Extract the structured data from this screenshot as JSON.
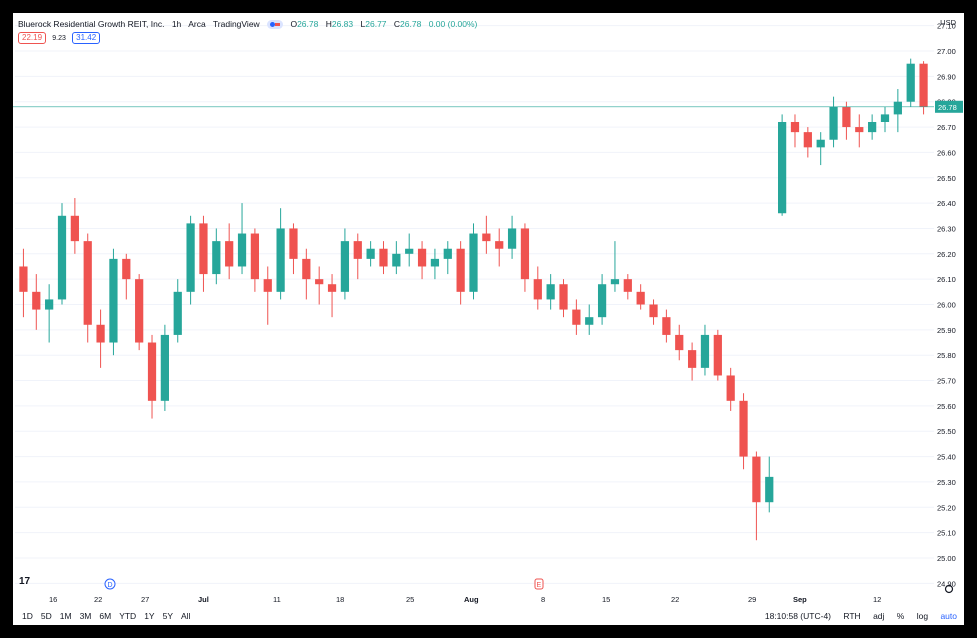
{
  "header": {
    "title": "Bluerock Residential Growth REIT, Inc.",
    "interval": "1h",
    "exchange": "Arca",
    "source": "TradingView",
    "o_label": "O",
    "o": "26.78",
    "h_label": "H",
    "h": "26.83",
    "l_label": "L",
    "l": "26.77",
    "c_label": "C",
    "c": "26.78",
    "change": "0.00 (0.00%)"
  },
  "indicator": {
    "left": "22.19",
    "mid": "9.23",
    "right": "31.42"
  },
  "currency": "USD",
  "range_buttons": [
    "1D",
    "5D",
    "1M",
    "3M",
    "6M",
    "YTD",
    "1Y",
    "5Y",
    "All"
  ],
  "footer": {
    "time": "18:10:58 (UTC-4)",
    "session": "RTH",
    "adj": "adj",
    "pct": "%",
    "log": "log",
    "auto": "auto"
  },
  "markers": [
    {
      "label": "D",
      "date": "Jun 24"
    },
    {
      "label": "E",
      "date": "Aug 8"
    }
  ],
  "colors": {
    "up": "#26a69a",
    "down": "#ef5350",
    "price_line": "#26a69a",
    "text": "#131722"
  },
  "chart_data": {
    "type": "candlestick",
    "y_axis": {
      "min": 24.85,
      "max": 27.15,
      "ticks": [
        "24.90",
        "25.00",
        "25.10",
        "25.20",
        "25.30",
        "25.40",
        "25.50",
        "25.60",
        "25.70",
        "25.80",
        "25.90",
        "26.00",
        "26.10",
        "26.20",
        "26.30",
        "26.40",
        "26.50",
        "26.60",
        "26.70",
        "26.80",
        "26.90",
        "27.00",
        "27.10"
      ]
    },
    "x_axis": {
      "labels": [
        "16",
        "22",
        "27",
        "Jul",
        "11",
        "18",
        "25",
        "Aug",
        "8",
        "15",
        "22",
        "29",
        "Sep",
        "12"
      ]
    },
    "last_price": "26.78",
    "series": [
      {
        "x": "Jun 14",
        "values": [
          26.15,
          26.22,
          25.95,
          26.05
        ]
      },
      {
        "x": "Jun 15",
        "values": [
          26.05,
          26.12,
          25.9,
          25.98
        ]
      },
      {
        "x": "Jun 16",
        "values": [
          25.98,
          26.08,
          25.85,
          26.02
        ]
      },
      {
        "x": "Jun 17",
        "values": [
          26.02,
          26.4,
          26.0,
          26.35
        ]
      },
      {
        "x": "Jun 18",
        "values": [
          26.35,
          26.42,
          26.2,
          26.25
        ]
      },
      {
        "x": "Jun 21",
        "values": [
          26.25,
          26.28,
          25.85,
          25.92
        ]
      },
      {
        "x": "Jun 21",
        "values": [
          25.92,
          25.98,
          25.75,
          25.85
        ]
      },
      {
        "x": "Jun 22",
        "values": [
          25.85,
          26.22,
          25.8,
          26.18
        ]
      },
      {
        "x": "Jun 23",
        "values": [
          26.18,
          26.2,
          26.02,
          26.1
        ]
      },
      {
        "x": "Jun 24",
        "values": [
          26.1,
          26.12,
          25.82,
          25.85
        ]
      },
      {
        "x": "Jun 25",
        "values": [
          25.85,
          25.88,
          25.55,
          25.62
        ]
      },
      {
        "x": "Jun 25",
        "values": [
          25.62,
          25.92,
          25.58,
          25.88
        ]
      },
      {
        "x": "Jun 28",
        "values": [
          25.88,
          26.1,
          25.85,
          26.05
        ]
      },
      {
        "x": "Jun 29",
        "values": [
          26.05,
          26.35,
          26.0,
          26.32
        ]
      },
      {
        "x": "Jun 30",
        "values": [
          26.32,
          26.35,
          26.05,
          26.12
        ]
      },
      {
        "x": "Jul 1",
        "values": [
          26.12,
          26.3,
          26.08,
          26.25
        ]
      },
      {
        "x": "Jul 2",
        "values": [
          26.25,
          26.32,
          26.1,
          26.15
        ]
      },
      {
        "x": "Jul 6",
        "values": [
          26.15,
          26.4,
          26.12,
          26.28
        ]
      },
      {
        "x": "Jul 7",
        "values": [
          26.28,
          26.3,
          26.05,
          26.1
        ]
      },
      {
        "x": "Jul 8",
        "values": [
          26.1,
          26.15,
          25.92,
          26.05
        ]
      },
      {
        "x": "Jul 9",
        "values": [
          26.05,
          26.38,
          26.02,
          26.3
        ]
      },
      {
        "x": "Jul 12",
        "values": [
          26.3,
          26.32,
          26.12,
          26.18
        ]
      },
      {
        "x": "Jul 13",
        "values": [
          26.18,
          26.22,
          26.02,
          26.1
        ]
      },
      {
        "x": "Jul 14",
        "values": [
          26.1,
          26.15,
          26.0,
          26.08
        ]
      },
      {
        "x": "Jul 15",
        "values": [
          26.08,
          26.12,
          25.95,
          26.05
        ]
      },
      {
        "x": "Jul 16",
        "values": [
          26.05,
          26.3,
          26.02,
          26.25
        ]
      },
      {
        "x": "Jul 19",
        "values": [
          26.25,
          26.28,
          26.1,
          26.18
        ]
      },
      {
        "x": "Jul 20",
        "values": [
          26.18,
          26.25,
          26.15,
          26.22
        ]
      },
      {
        "x": "Jul 21",
        "values": [
          26.22,
          26.25,
          26.12,
          26.15
        ]
      },
      {
        "x": "Jul 22",
        "values": [
          26.15,
          26.25,
          26.12,
          26.2
        ]
      },
      {
        "x": "Jul 23",
        "values": [
          26.2,
          26.28,
          26.15,
          26.22
        ]
      },
      {
        "x": "Jul 26",
        "values": [
          26.22,
          26.25,
          26.1,
          26.15
        ]
      },
      {
        "x": "Jul 27",
        "values": [
          26.15,
          26.22,
          26.1,
          26.18
        ]
      },
      {
        "x": "Jul 28",
        "values": [
          26.18,
          26.25,
          26.12,
          26.22
        ]
      },
      {
        "x": "Jul 29",
        "values": [
          26.22,
          26.25,
          26.0,
          26.05
        ]
      },
      {
        "x": "Jul 30",
        "values": [
          26.05,
          26.32,
          26.02,
          26.28
        ]
      },
      {
        "x": "Aug 2",
        "values": [
          26.28,
          26.35,
          26.2,
          26.25
        ]
      },
      {
        "x": "Aug 3",
        "values": [
          26.25,
          26.3,
          26.15,
          26.22
        ]
      },
      {
        "x": "Aug 4",
        "values": [
          26.22,
          26.35,
          26.18,
          26.3
        ]
      },
      {
        "x": "Aug 5",
        "values": [
          26.3,
          26.32,
          26.05,
          26.1
        ]
      },
      {
        "x": "Aug 6",
        "values": [
          26.1,
          26.15,
          25.98,
          26.02
        ]
      },
      {
        "x": "Aug 9",
        "values": [
          26.02,
          26.12,
          25.98,
          26.08
        ]
      },
      {
        "x": "Aug 10",
        "values": [
          26.08,
          26.1,
          25.95,
          25.98
        ]
      },
      {
        "x": "Aug 11",
        "values": [
          25.98,
          26.02,
          25.88,
          25.92
        ]
      },
      {
        "x": "Aug 12",
        "values": [
          25.92,
          26.0,
          25.88,
          25.95
        ]
      },
      {
        "x": "Aug 13",
        "values": [
          25.95,
          26.12,
          25.92,
          26.08
        ]
      },
      {
        "x": "Aug 16",
        "values": [
          26.08,
          26.25,
          26.05,
          26.1
        ]
      },
      {
        "x": "Aug 17",
        "values": [
          26.1,
          26.12,
          26.02,
          26.05
        ]
      },
      {
        "x": "Aug 18",
        "values": [
          26.05,
          26.08,
          25.98,
          26.0
        ]
      },
      {
        "x": "Aug 19",
        "values": [
          26.0,
          26.02,
          25.92,
          25.95
        ]
      },
      {
        "x": "Aug 20",
        "values": [
          25.95,
          25.98,
          25.85,
          25.88
        ]
      },
      {
        "x": "Aug 23",
        "values": [
          25.88,
          25.92,
          25.78,
          25.82
        ]
      },
      {
        "x": "Aug 24",
        "values": [
          25.82,
          25.85,
          25.7,
          25.75
        ]
      },
      {
        "x": "Aug 25",
        "values": [
          25.75,
          25.92,
          25.72,
          25.88
        ]
      },
      {
        "x": "Aug 26",
        "values": [
          25.88,
          25.9,
          25.7,
          25.72
        ]
      },
      {
        "x": "Aug 27",
        "values": [
          25.72,
          25.75,
          25.58,
          25.62
        ]
      },
      {
        "x": "Aug 30",
        "values": [
          25.62,
          25.65,
          25.35,
          25.4
        ]
      },
      {
        "x": "Aug 30",
        "values": [
          25.4,
          25.42,
          25.07,
          25.22
        ]
      },
      {
        "x": "Aug 31",
        "values": [
          25.22,
          25.4,
          25.18,
          25.32
        ]
      },
      {
        "x": "Sep 1",
        "values": [
          26.36,
          26.75,
          26.35,
          26.72
        ]
      },
      {
        "x": "Sep 2",
        "values": [
          26.72,
          26.75,
          26.62,
          26.68
        ]
      },
      {
        "x": "Sep 3",
        "values": [
          26.68,
          26.7,
          26.58,
          26.62
        ]
      },
      {
        "x": "Sep 7",
        "values": [
          26.62,
          26.68,
          26.55,
          26.65
        ]
      },
      {
        "x": "Sep 8",
        "values": [
          26.65,
          26.82,
          26.62,
          26.78
        ]
      },
      {
        "x": "Sep 9",
        "values": [
          26.78,
          26.8,
          26.65,
          26.7
        ]
      },
      {
        "x": "Sep 10",
        "values": [
          26.7,
          26.75,
          26.62,
          26.68
        ]
      },
      {
        "x": "Sep 13",
        "values": [
          26.68,
          26.75,
          26.65,
          26.72
        ]
      },
      {
        "x": "Sep 14",
        "values": [
          26.72,
          26.78,
          26.68,
          26.75
        ]
      },
      {
        "x": "Sep 15",
        "values": [
          26.75,
          26.85,
          26.68,
          26.8
        ]
      },
      {
        "x": "Sep 16",
        "values": [
          26.8,
          26.97,
          26.78,
          26.95
        ]
      },
      {
        "x": "Sep 17",
        "values": [
          26.95,
          26.96,
          26.75,
          26.78
        ]
      }
    ]
  }
}
